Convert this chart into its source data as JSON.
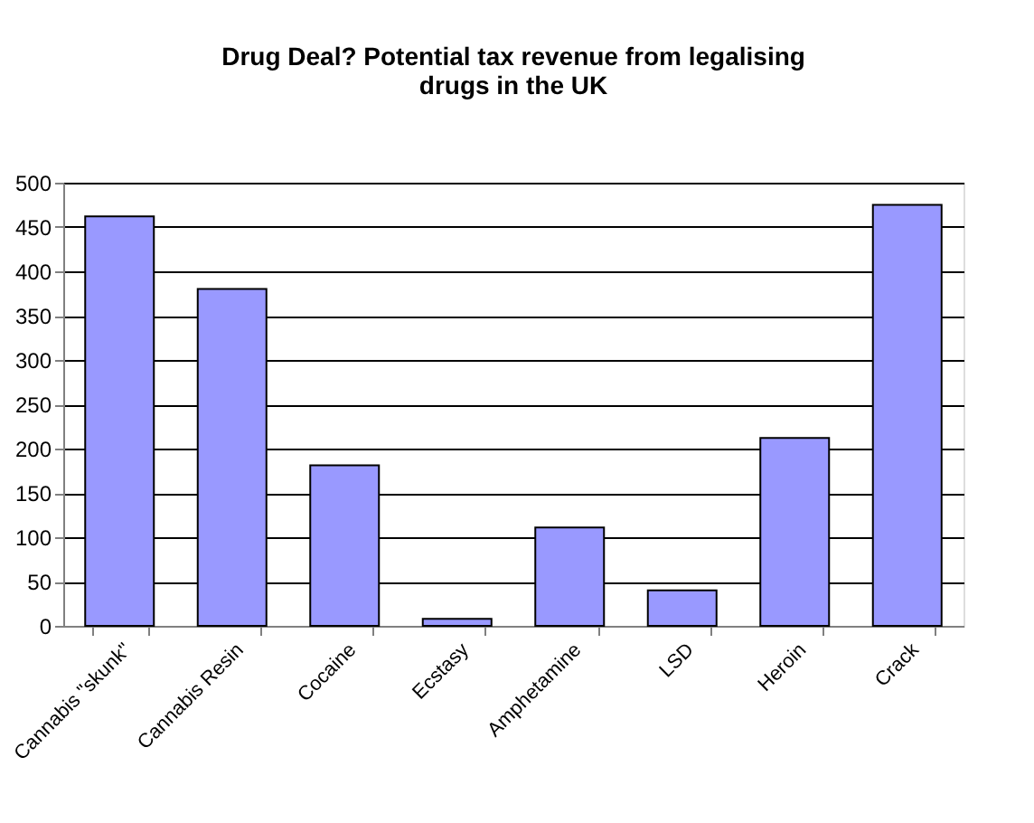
{
  "chart_data": {
    "type": "bar",
    "title": "Drug Deal? Potential tax revenue from legalising drugs in the UK",
    "categories": [
      "Cannabis \"skunk\"",
      "Cannabis Resin",
      "Cocaine",
      "Ecstasy",
      "Amphetamine",
      "LSD",
      "Heroin",
      "Crack"
    ],
    "values": [
      462,
      380,
      181,
      8,
      111,
      40,
      212,
      475
    ],
    "color": "#9999ff",
    "ylim": [
      0,
      500
    ],
    "yticks": [
      0,
      50,
      100,
      150,
      200,
      250,
      300,
      350,
      400,
      450,
      500
    ],
    "grid": "y"
  }
}
